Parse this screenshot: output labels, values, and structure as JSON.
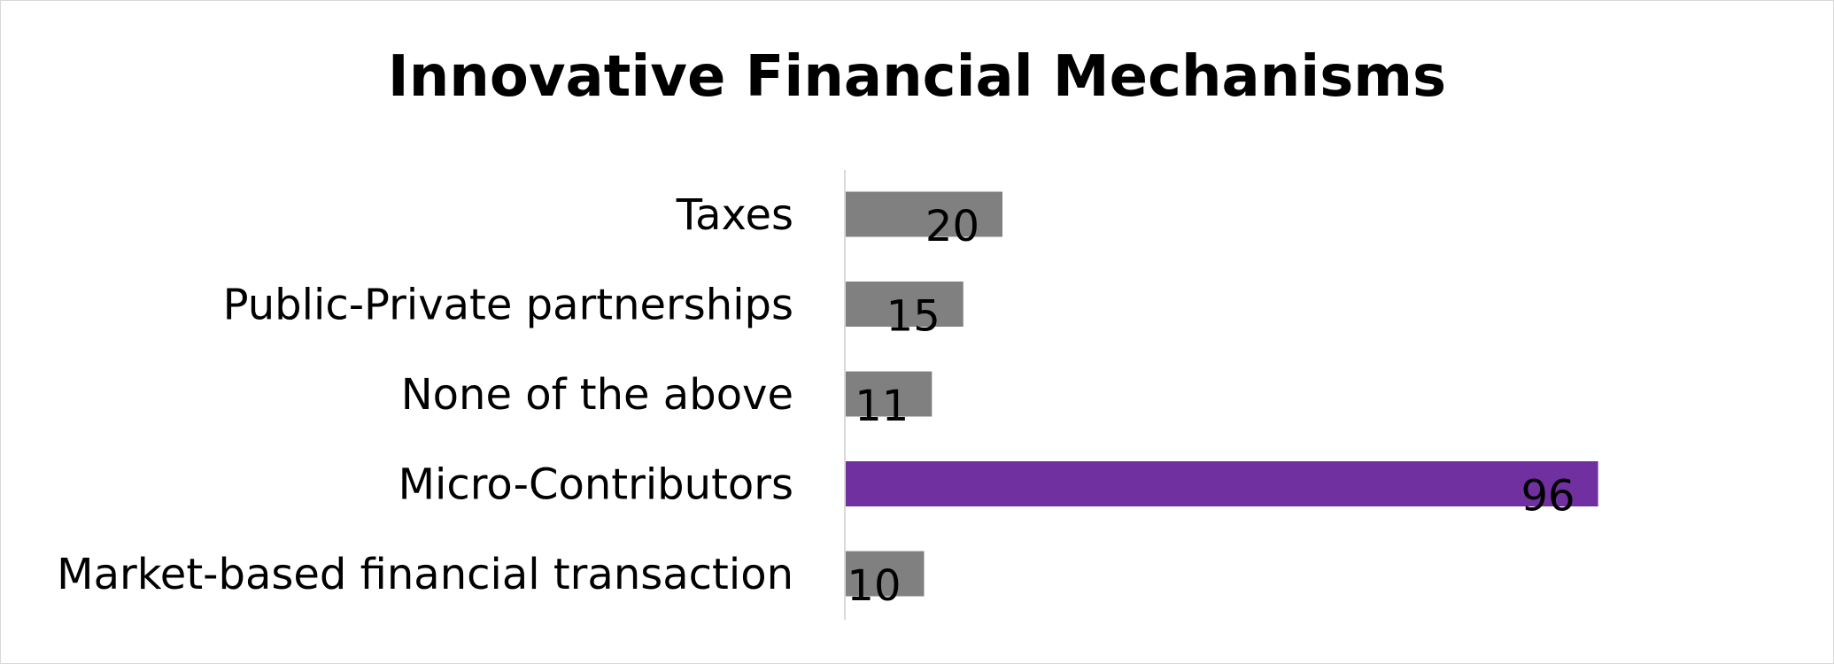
{
  "chart_data": {
    "type": "bar",
    "orientation": "horizontal",
    "title": "Innovative Financial Mechanisms",
    "categories": [
      "Taxes",
      "Public-Private partnerships",
      "None of the above",
      "Micro-Contributors",
      "Market-based financial transaction"
    ],
    "values": [
      20,
      15,
      11,
      96,
      10
    ],
    "colors": [
      "#808080",
      "#808080",
      "#808080",
      "#7030a0",
      "#808080"
    ],
    "xlim": [
      0,
      100
    ],
    "grid": false,
    "legend": "none",
    "data_labels": "inside-end"
  }
}
